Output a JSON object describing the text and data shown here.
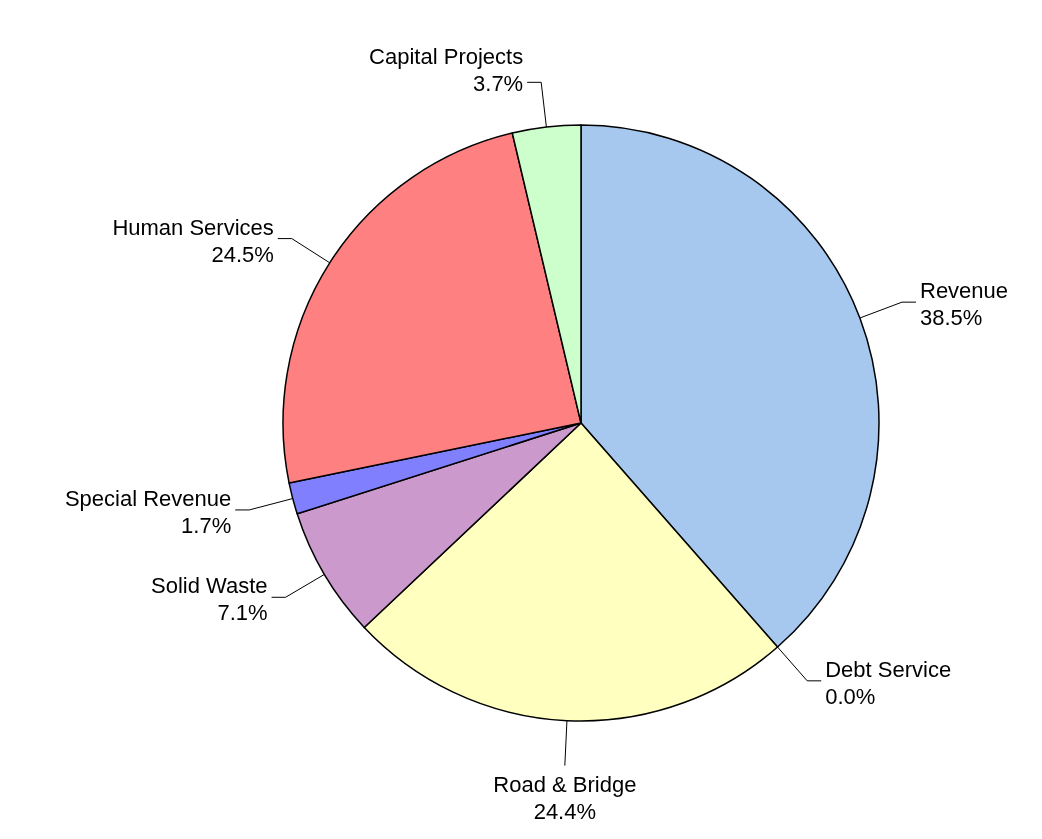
{
  "chart_data": {
    "type": "pie",
    "categories": [
      "Revenue",
      "Debt Service",
      "Road & Bridge",
      "Solid Waste",
      "Special Revenue",
      "Human Services",
      "Capital Projects"
    ],
    "values": [
      38.5,
      0.0,
      24.4,
      7.1,
      1.7,
      24.5,
      3.7
    ],
    "value_labels": [
      "38.5%",
      "0.0%",
      "24.4%",
      "7.1%",
      "1.7%",
      "24.5%",
      "3.7%"
    ],
    "colors": [
      "#a6c8ee",
      "#336699",
      "#ffffc0",
      "#cc99cc",
      "#8080ff",
      "#ff8080",
      "#ccffcc"
    ]
  }
}
